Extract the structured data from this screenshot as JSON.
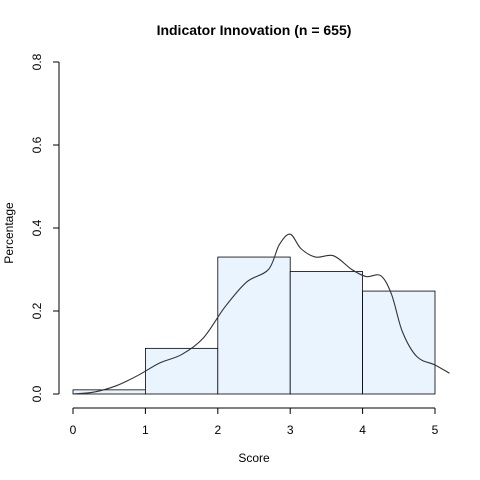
{
  "chart_data": {
    "type": "bar",
    "title": "Indicator Innovation (n = 655)",
    "xlabel": "Score",
    "ylabel": "Percentage",
    "bins": [
      [
        0,
        1
      ],
      [
        1,
        2
      ],
      [
        2,
        3
      ],
      [
        3,
        4
      ],
      [
        4,
        5
      ]
    ],
    "values": [
      0.01,
      0.11,
      0.33,
      0.295,
      0.248
    ],
    "xlim": [
      0,
      5
    ],
    "ylim": [
      0,
      0.8
    ],
    "xticks": [
      "0",
      "1",
      "2",
      "3",
      "4",
      "5"
    ],
    "yticks": [
      "0.0",
      "0.2",
      "0.4",
      "0.6",
      "0.8"
    ],
    "bar_color": "#eaf4ff",
    "density": {
      "x": [
        0,
        0.3,
        0.6,
        0.9,
        1.2,
        1.5,
        1.8,
        2.1,
        2.4,
        2.7,
        2.85,
        3.0,
        3.15,
        3.35,
        3.6,
        3.85,
        4.05,
        4.25,
        4.4,
        4.55,
        4.75,
        5.0,
        5.2
      ],
      "y": [
        0,
        0.005,
        0.02,
        0.045,
        0.075,
        0.095,
        0.135,
        0.21,
        0.27,
        0.3,
        0.36,
        0.385,
        0.35,
        0.33,
        0.333,
        0.3,
        0.283,
        0.285,
        0.24,
        0.15,
        0.09,
        0.07,
        0.05
      ]
    }
  }
}
